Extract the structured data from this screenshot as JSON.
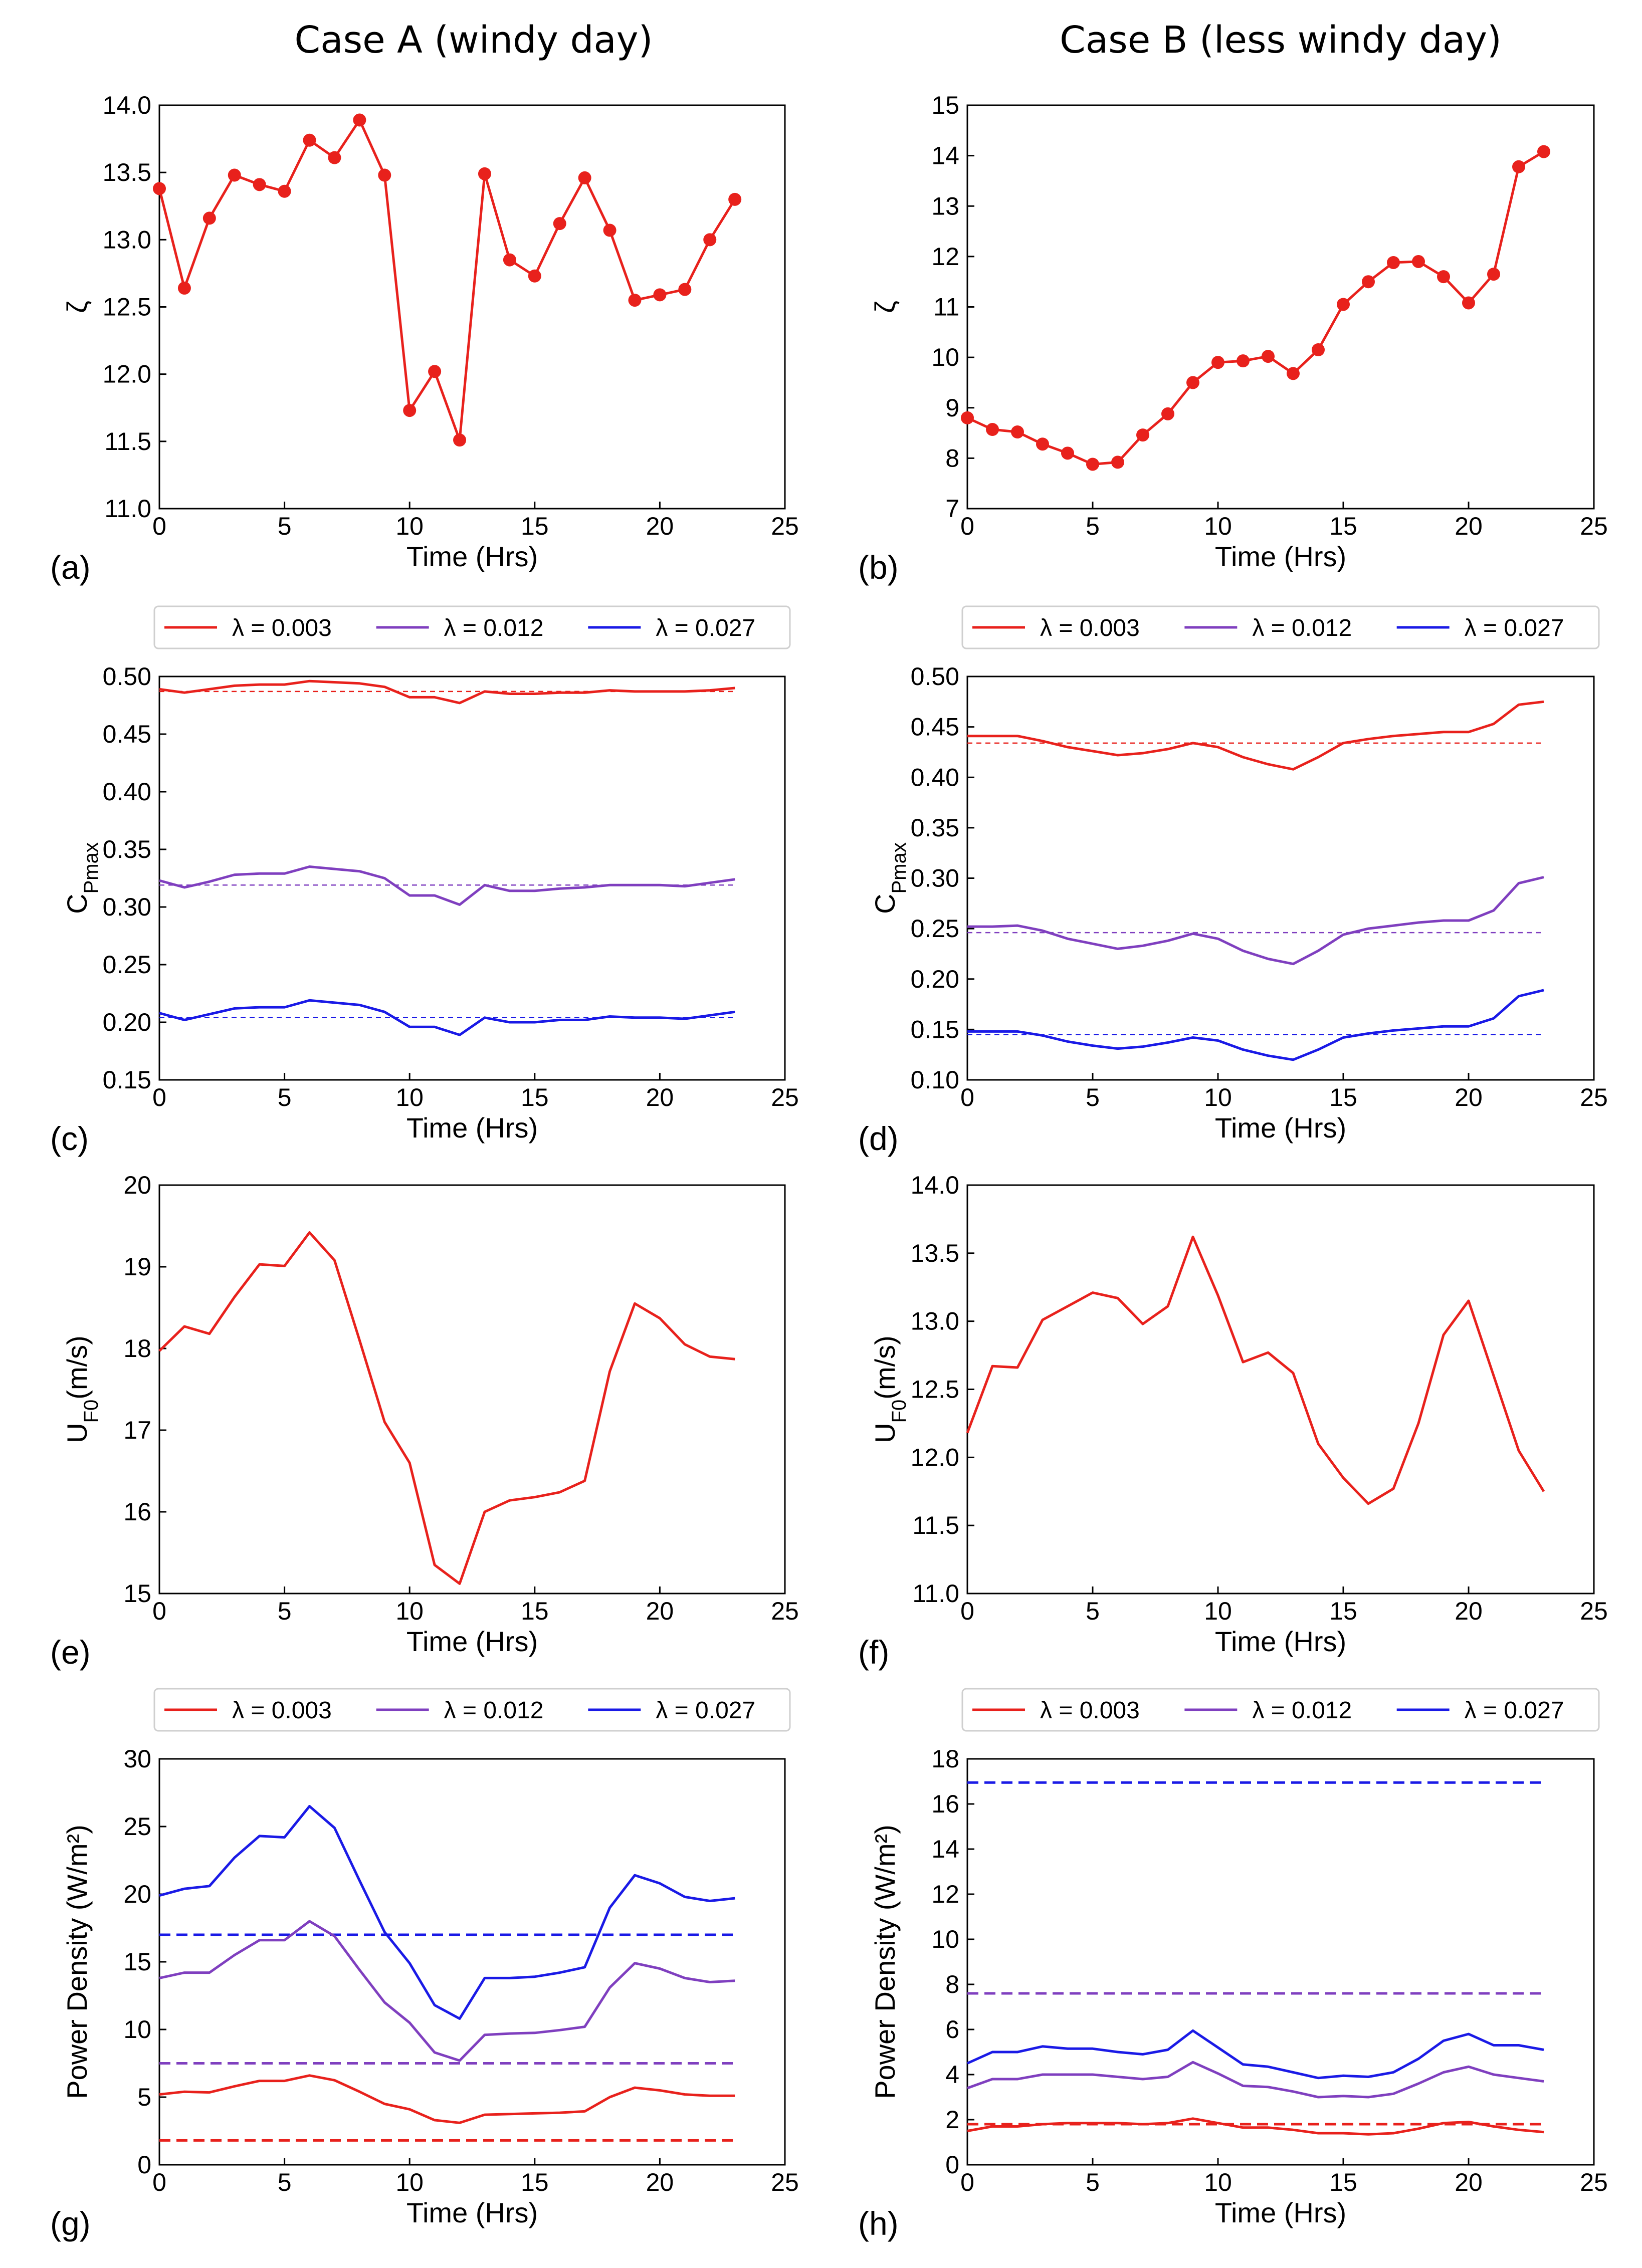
{
  "column_titles": [
    "Case A (windy day)",
    "Case B (less windy day)"
  ],
  "colors": {
    "red": "#e8211c",
    "purple": "#7f3fbf",
    "blue": "#1a1ae6",
    "axis": "#000000"
  },
  "chart_data": [
    {
      "id": "a",
      "panel_label": "(a)",
      "type": "line",
      "markers": true,
      "xlabel": "Time (Hrs)",
      "ylabel": "ζ",
      "xlim": [
        0,
        25
      ],
      "ylim": [
        11.0,
        14.0
      ],
      "xticks": [
        0,
        5,
        10,
        15,
        20,
        25
      ],
      "yticks": [
        "11.0",
        "11.5",
        "12.0",
        "12.5",
        "13.0",
        "13.5",
        "14.0"
      ],
      "x": [
        0,
        1,
        2,
        3,
        4,
        5,
        6,
        7,
        8,
        9,
        10,
        11,
        12,
        13,
        14,
        15,
        16,
        17,
        18,
        19,
        20,
        21,
        22,
        23
      ],
      "series": [
        {
          "name": "ζ",
          "color": "#e8211c",
          "values": [
            13.38,
            12.64,
            13.16,
            13.48,
            13.41,
            13.36,
            13.74,
            13.61,
            13.89,
            13.48,
            11.73,
            12.02,
            11.51,
            13.49,
            12.85,
            12.73,
            13.12,
            13.46,
            13.07,
            12.55,
            12.59,
            12.63,
            13.0,
            13.3
          ]
        }
      ]
    },
    {
      "id": "b",
      "panel_label": "(b)",
      "type": "line",
      "markers": true,
      "xlabel": "Time (Hrs)",
      "ylabel": "ζ",
      "xlim": [
        0,
        25
      ],
      "ylim": [
        7,
        15
      ],
      "xticks": [
        0,
        5,
        10,
        15,
        20,
        25
      ],
      "yticks": [
        "7",
        "8",
        "9",
        "10",
        "11",
        "12",
        "13",
        "14",
        "15"
      ],
      "x": [
        0,
        1,
        2,
        3,
        4,
        5,
        6,
        7,
        8,
        9,
        10,
        11,
        12,
        13,
        14,
        15,
        16,
        17,
        18,
        19,
        20,
        21,
        22,
        23
      ],
      "series": [
        {
          "name": "ζ",
          "color": "#e8211c",
          "values": [
            8.8,
            8.57,
            8.52,
            8.28,
            8.1,
            7.88,
            7.92,
            8.46,
            8.88,
            9.5,
            9.9,
            9.93,
            10.02,
            9.68,
            10.15,
            11.05,
            11.5,
            11.88,
            11.9,
            11.6,
            11.08,
            11.65,
            13.78,
            14.08
          ]
        }
      ]
    },
    {
      "id": "c",
      "panel_label": "(c)",
      "type": "line",
      "markers": false,
      "xlabel": "Time (Hrs)",
      "ylabel": "C",
      "ylabel_sub": "Pmax",
      "xlim": [
        0,
        25
      ],
      "ylim": [
        0.15,
        0.5
      ],
      "xticks": [
        0,
        5,
        10,
        15,
        20,
        25
      ],
      "yticks": [
        "0.15",
        "0.20",
        "0.25",
        "0.30",
        "0.35",
        "0.40",
        "0.45",
        "0.50"
      ],
      "legend": [
        {
          "label": "λ = 0.003",
          "color": "#e8211c"
        },
        {
          "label": "λ = 0.012",
          "color": "#7f3fbf"
        },
        {
          "label": "λ = 0.027",
          "color": "#1a1ae6"
        }
      ],
      "x": [
        0,
        1,
        2,
        3,
        4,
        5,
        6,
        7,
        8,
        9,
        10,
        11,
        12,
        13,
        14,
        15,
        16,
        17,
        18,
        19,
        20,
        21,
        22,
        23
      ],
      "series": [
        {
          "name": "λ = 0.003",
          "color": "#e8211c",
          "values": [
            0.489,
            0.486,
            0.489,
            0.492,
            0.493,
            0.493,
            0.496,
            0.495,
            0.494,
            0.491,
            0.482,
            0.482,
            0.477,
            0.487,
            0.485,
            0.485,
            0.486,
            0.486,
            0.488,
            0.487,
            0.487,
            0.487,
            0.488,
            0.49
          ]
        },
        {
          "name": "λ = 0.012",
          "color": "#7f3fbf",
          "values": [
            0.323,
            0.317,
            0.322,
            0.328,
            0.329,
            0.329,
            0.335,
            0.333,
            0.331,
            0.325,
            0.31,
            0.31,
            0.302,
            0.319,
            0.314,
            0.314,
            0.316,
            0.317,
            0.319,
            0.319,
            0.319,
            0.318,
            0.321,
            0.324
          ]
        },
        {
          "name": "λ = 0.027",
          "color": "#1a1ae6",
          "values": [
            0.208,
            0.202,
            0.207,
            0.212,
            0.213,
            0.213,
            0.219,
            0.217,
            0.215,
            0.209,
            0.196,
            0.196,
            0.189,
            0.204,
            0.2,
            0.2,
            0.202,
            0.202,
            0.205,
            0.204,
            0.204,
            0.203,
            0.206,
            0.209
          ]
        }
      ],
      "dashed": [
        {
          "color": "#e8211c",
          "value": 0.487
        },
        {
          "color": "#7f3fbf",
          "value": 0.319
        },
        {
          "color": "#1a1ae6",
          "value": 0.204
        }
      ]
    },
    {
      "id": "d",
      "panel_label": "(d)",
      "type": "line",
      "markers": false,
      "xlabel": "Time (Hrs)",
      "ylabel": "C",
      "ylabel_sub": "Pmax",
      "xlim": [
        0,
        25
      ],
      "ylim": [
        0.1,
        0.5
      ],
      "xticks": [
        0,
        5,
        10,
        15,
        20,
        25
      ],
      "yticks": [
        "0.10",
        "0.15",
        "0.20",
        "0.25",
        "0.30",
        "0.35",
        "0.40",
        "0.45",
        "0.50"
      ],
      "legend": [
        {
          "label": "λ = 0.003",
          "color": "#e8211c"
        },
        {
          "label": "λ = 0.012",
          "color": "#7f3fbf"
        },
        {
          "label": "λ = 0.027",
          "color": "#1a1ae6"
        }
      ],
      "x": [
        0,
        1,
        2,
        3,
        4,
        5,
        6,
        7,
        8,
        9,
        10,
        11,
        12,
        13,
        14,
        15,
        16,
        17,
        18,
        19,
        20,
        21,
        22,
        23
      ],
      "series": [
        {
          "name": "λ = 0.003",
          "color": "#e8211c",
          "values": [
            0.441,
            0.441,
            0.441,
            0.436,
            0.43,
            0.426,
            0.422,
            0.424,
            0.428,
            0.434,
            0.43,
            0.42,
            0.413,
            0.408,
            0.42,
            0.434,
            0.438,
            0.441,
            0.443,
            0.445,
            0.445,
            0.453,
            0.472,
            0.475
          ]
        },
        {
          "name": "λ = 0.012",
          "color": "#7f3fbf",
          "values": [
            0.252,
            0.252,
            0.253,
            0.248,
            0.24,
            0.235,
            0.23,
            0.233,
            0.238,
            0.245,
            0.24,
            0.228,
            0.22,
            0.215,
            0.228,
            0.244,
            0.25,
            0.253,
            0.256,
            0.258,
            0.258,
            0.268,
            0.295,
            0.301
          ]
        },
        {
          "name": "λ = 0.027",
          "color": "#1a1ae6",
          "values": [
            0.148,
            0.148,
            0.148,
            0.144,
            0.138,
            0.134,
            0.131,
            0.133,
            0.137,
            0.142,
            0.139,
            0.13,
            0.124,
            0.12,
            0.13,
            0.142,
            0.146,
            0.149,
            0.151,
            0.153,
            0.153,
            0.161,
            0.183,
            0.189
          ]
        }
      ],
      "dashed": [
        {
          "color": "#e8211c",
          "value": 0.434
        },
        {
          "color": "#7f3fbf",
          "value": 0.246
        },
        {
          "color": "#1a1ae6",
          "value": 0.145
        }
      ]
    },
    {
      "id": "e",
      "panel_label": "(e)",
      "type": "line",
      "markers": false,
      "xlabel": "Time (Hrs)",
      "ylabel": "U",
      "ylabel_sub": "F0",
      "ylabel_tail": "(m/s)",
      "xlim": [
        0,
        25
      ],
      "ylim": [
        15,
        20
      ],
      "xticks": [
        0,
        5,
        10,
        15,
        20,
        25
      ],
      "yticks": [
        "15",
        "16",
        "17",
        "18",
        "19",
        "20"
      ],
      "x": [
        0,
        1,
        2,
        3,
        4,
        5,
        6,
        7,
        8,
        9,
        10,
        11,
        12,
        13,
        14,
        15,
        16,
        17,
        18,
        19,
        20,
        21,
        22,
        23
      ],
      "series": [
        {
          "name": "U_F0",
          "color": "#e8211c",
          "values": [
            17.97,
            18.27,
            18.18,
            18.63,
            19.03,
            19.01,
            19.42,
            19.08,
            18.1,
            17.1,
            16.6,
            15.35,
            15.12,
            16.0,
            16.14,
            16.18,
            16.24,
            16.38,
            17.72,
            18.55,
            18.37,
            18.05,
            17.9,
            17.87
          ]
        }
      ]
    },
    {
      "id": "f",
      "panel_label": "(f)",
      "type": "line",
      "markers": false,
      "xlabel": "Time (Hrs)",
      "ylabel": "U",
      "ylabel_sub": "F0",
      "ylabel_tail": "(m/s)",
      "xlim": [
        0,
        25
      ],
      "ylim": [
        11.0,
        14.0
      ],
      "xticks": [
        0,
        5,
        10,
        15,
        20,
        25
      ],
      "yticks": [
        "11.0",
        "11.5",
        "12.0",
        "12.5",
        "13.0",
        "13.5",
        "14.0"
      ],
      "x": [
        0,
        1,
        2,
        3,
        4,
        5,
        6,
        7,
        8,
        9,
        10,
        11,
        12,
        13,
        14,
        15,
        16,
        17,
        18,
        19,
        20,
        21,
        22,
        23
      ],
      "series": [
        {
          "name": "U_F0",
          "color": "#e8211c",
          "values": [
            12.18,
            12.67,
            12.66,
            13.01,
            13.11,
            13.21,
            13.17,
            12.98,
            13.11,
            13.62,
            13.19,
            12.7,
            12.77,
            12.62,
            12.1,
            11.85,
            11.66,
            11.77,
            12.25,
            12.9,
            13.15,
            12.6,
            12.05,
            11.75
          ]
        }
      ]
    },
    {
      "id": "g",
      "panel_label": "(g)",
      "type": "line",
      "markers": false,
      "xlabel": "Time (Hrs)",
      "ylabel": "Power Density (W/m²)",
      "xlim": [
        0,
        25
      ],
      "ylim": [
        0,
        30
      ],
      "xticks": [
        0,
        5,
        10,
        15,
        20,
        25
      ],
      "yticks": [
        "0",
        "5",
        "10",
        "15",
        "20",
        "25",
        "30"
      ],
      "legend": [
        {
          "label": "λ = 0.003",
          "color": "#e8211c"
        },
        {
          "label": "λ = 0.012",
          "color": "#7f3fbf"
        },
        {
          "label": "λ = 0.027",
          "color": "#1a1ae6"
        }
      ],
      "x": [
        0,
        1,
        2,
        3,
        4,
        5,
        6,
        7,
        8,
        9,
        10,
        11,
        12,
        13,
        14,
        15,
        16,
        17,
        18,
        19,
        20,
        21,
        22,
        23
      ],
      "series": [
        {
          "name": "λ = 0.003",
          "color": "#e8211c",
          "values": [
            5.2,
            5.4,
            5.35,
            5.8,
            6.2,
            6.2,
            6.6,
            6.25,
            5.4,
            4.5,
            4.1,
            3.3,
            3.1,
            3.7,
            3.75,
            3.8,
            3.85,
            3.95,
            5.0,
            5.7,
            5.5,
            5.2,
            5.1,
            5.1
          ]
        },
        {
          "name": "λ = 0.012",
          "color": "#7f3fbf",
          "values": [
            13.8,
            14.2,
            14.2,
            15.5,
            16.6,
            16.6,
            18.0,
            16.9,
            14.4,
            12.0,
            10.5,
            8.3,
            7.7,
            9.6,
            9.7,
            9.75,
            9.95,
            10.2,
            13.1,
            14.9,
            14.5,
            13.8,
            13.5,
            13.6
          ]
        },
        {
          "name": "λ = 0.027",
          "color": "#1a1ae6",
          "values": [
            19.9,
            20.4,
            20.6,
            22.7,
            24.3,
            24.2,
            26.5,
            24.9,
            21.0,
            17.2,
            14.9,
            11.8,
            10.8,
            13.8,
            13.8,
            13.9,
            14.2,
            14.6,
            19.0,
            21.4,
            20.8,
            19.8,
            19.5,
            19.7
          ]
        }
      ],
      "dashed": [
        {
          "color": "#e8211c",
          "value": 1.8
        },
        {
          "color": "#7f3fbf",
          "value": 7.5
        },
        {
          "color": "#1a1ae6",
          "value": 17.0
        }
      ]
    },
    {
      "id": "h",
      "panel_label": "(h)",
      "type": "line",
      "markers": false,
      "xlabel": "Time (Hrs)",
      "ylabel": "Power Density (W/m²)",
      "xlim": [
        0,
        25
      ],
      "ylim": [
        0,
        18
      ],
      "xticks": [
        0,
        5,
        10,
        15,
        20,
        25
      ],
      "yticks": [
        "0",
        "2",
        "4",
        "6",
        "8",
        "10",
        "12",
        "14",
        "16",
        "18"
      ],
      "legend": [
        {
          "label": "λ = 0.003",
          "color": "#e8211c"
        },
        {
          "label": "λ = 0.012",
          "color": "#7f3fbf"
        },
        {
          "label": "λ = 0.027",
          "color": "#1a1ae6"
        }
      ],
      "x": [
        0,
        1,
        2,
        3,
        4,
        5,
        6,
        7,
        8,
        9,
        10,
        11,
        12,
        13,
        14,
        15,
        16,
        17,
        18,
        19,
        20,
        21,
        22,
        23
      ],
      "series": [
        {
          "name": "λ = 0.003",
          "color": "#e8211c",
          "values": [
            1.5,
            1.7,
            1.7,
            1.8,
            1.85,
            1.85,
            1.85,
            1.8,
            1.85,
            2.05,
            1.85,
            1.65,
            1.65,
            1.55,
            1.4,
            1.4,
            1.35,
            1.4,
            1.6,
            1.85,
            1.9,
            1.7,
            1.55,
            1.45
          ]
        },
        {
          "name": "λ = 0.012",
          "color": "#7f3fbf",
          "values": [
            3.4,
            3.8,
            3.8,
            4.0,
            4.0,
            4.0,
            3.9,
            3.8,
            3.9,
            4.55,
            4.05,
            3.5,
            3.45,
            3.25,
            3.0,
            3.05,
            3.0,
            3.15,
            3.6,
            4.1,
            4.35,
            4.0,
            3.85,
            3.7
          ]
        },
        {
          "name": "λ = 0.027",
          "color": "#1a1ae6",
          "values": [
            4.5,
            5.0,
            5.0,
            5.25,
            5.15,
            5.15,
            5.0,
            4.9,
            5.1,
            5.95,
            5.2,
            4.45,
            4.35,
            4.1,
            3.85,
            3.95,
            3.9,
            4.1,
            4.7,
            5.5,
            5.8,
            5.3,
            5.3,
            5.1
          ]
        }
      ],
      "dashed": [
        {
          "color": "#e8211c",
          "value": 1.8
        },
        {
          "color": "#7f3fbf",
          "value": 7.6
        },
        {
          "color": "#1a1ae6",
          "value": 16.95
        }
      ]
    }
  ]
}
